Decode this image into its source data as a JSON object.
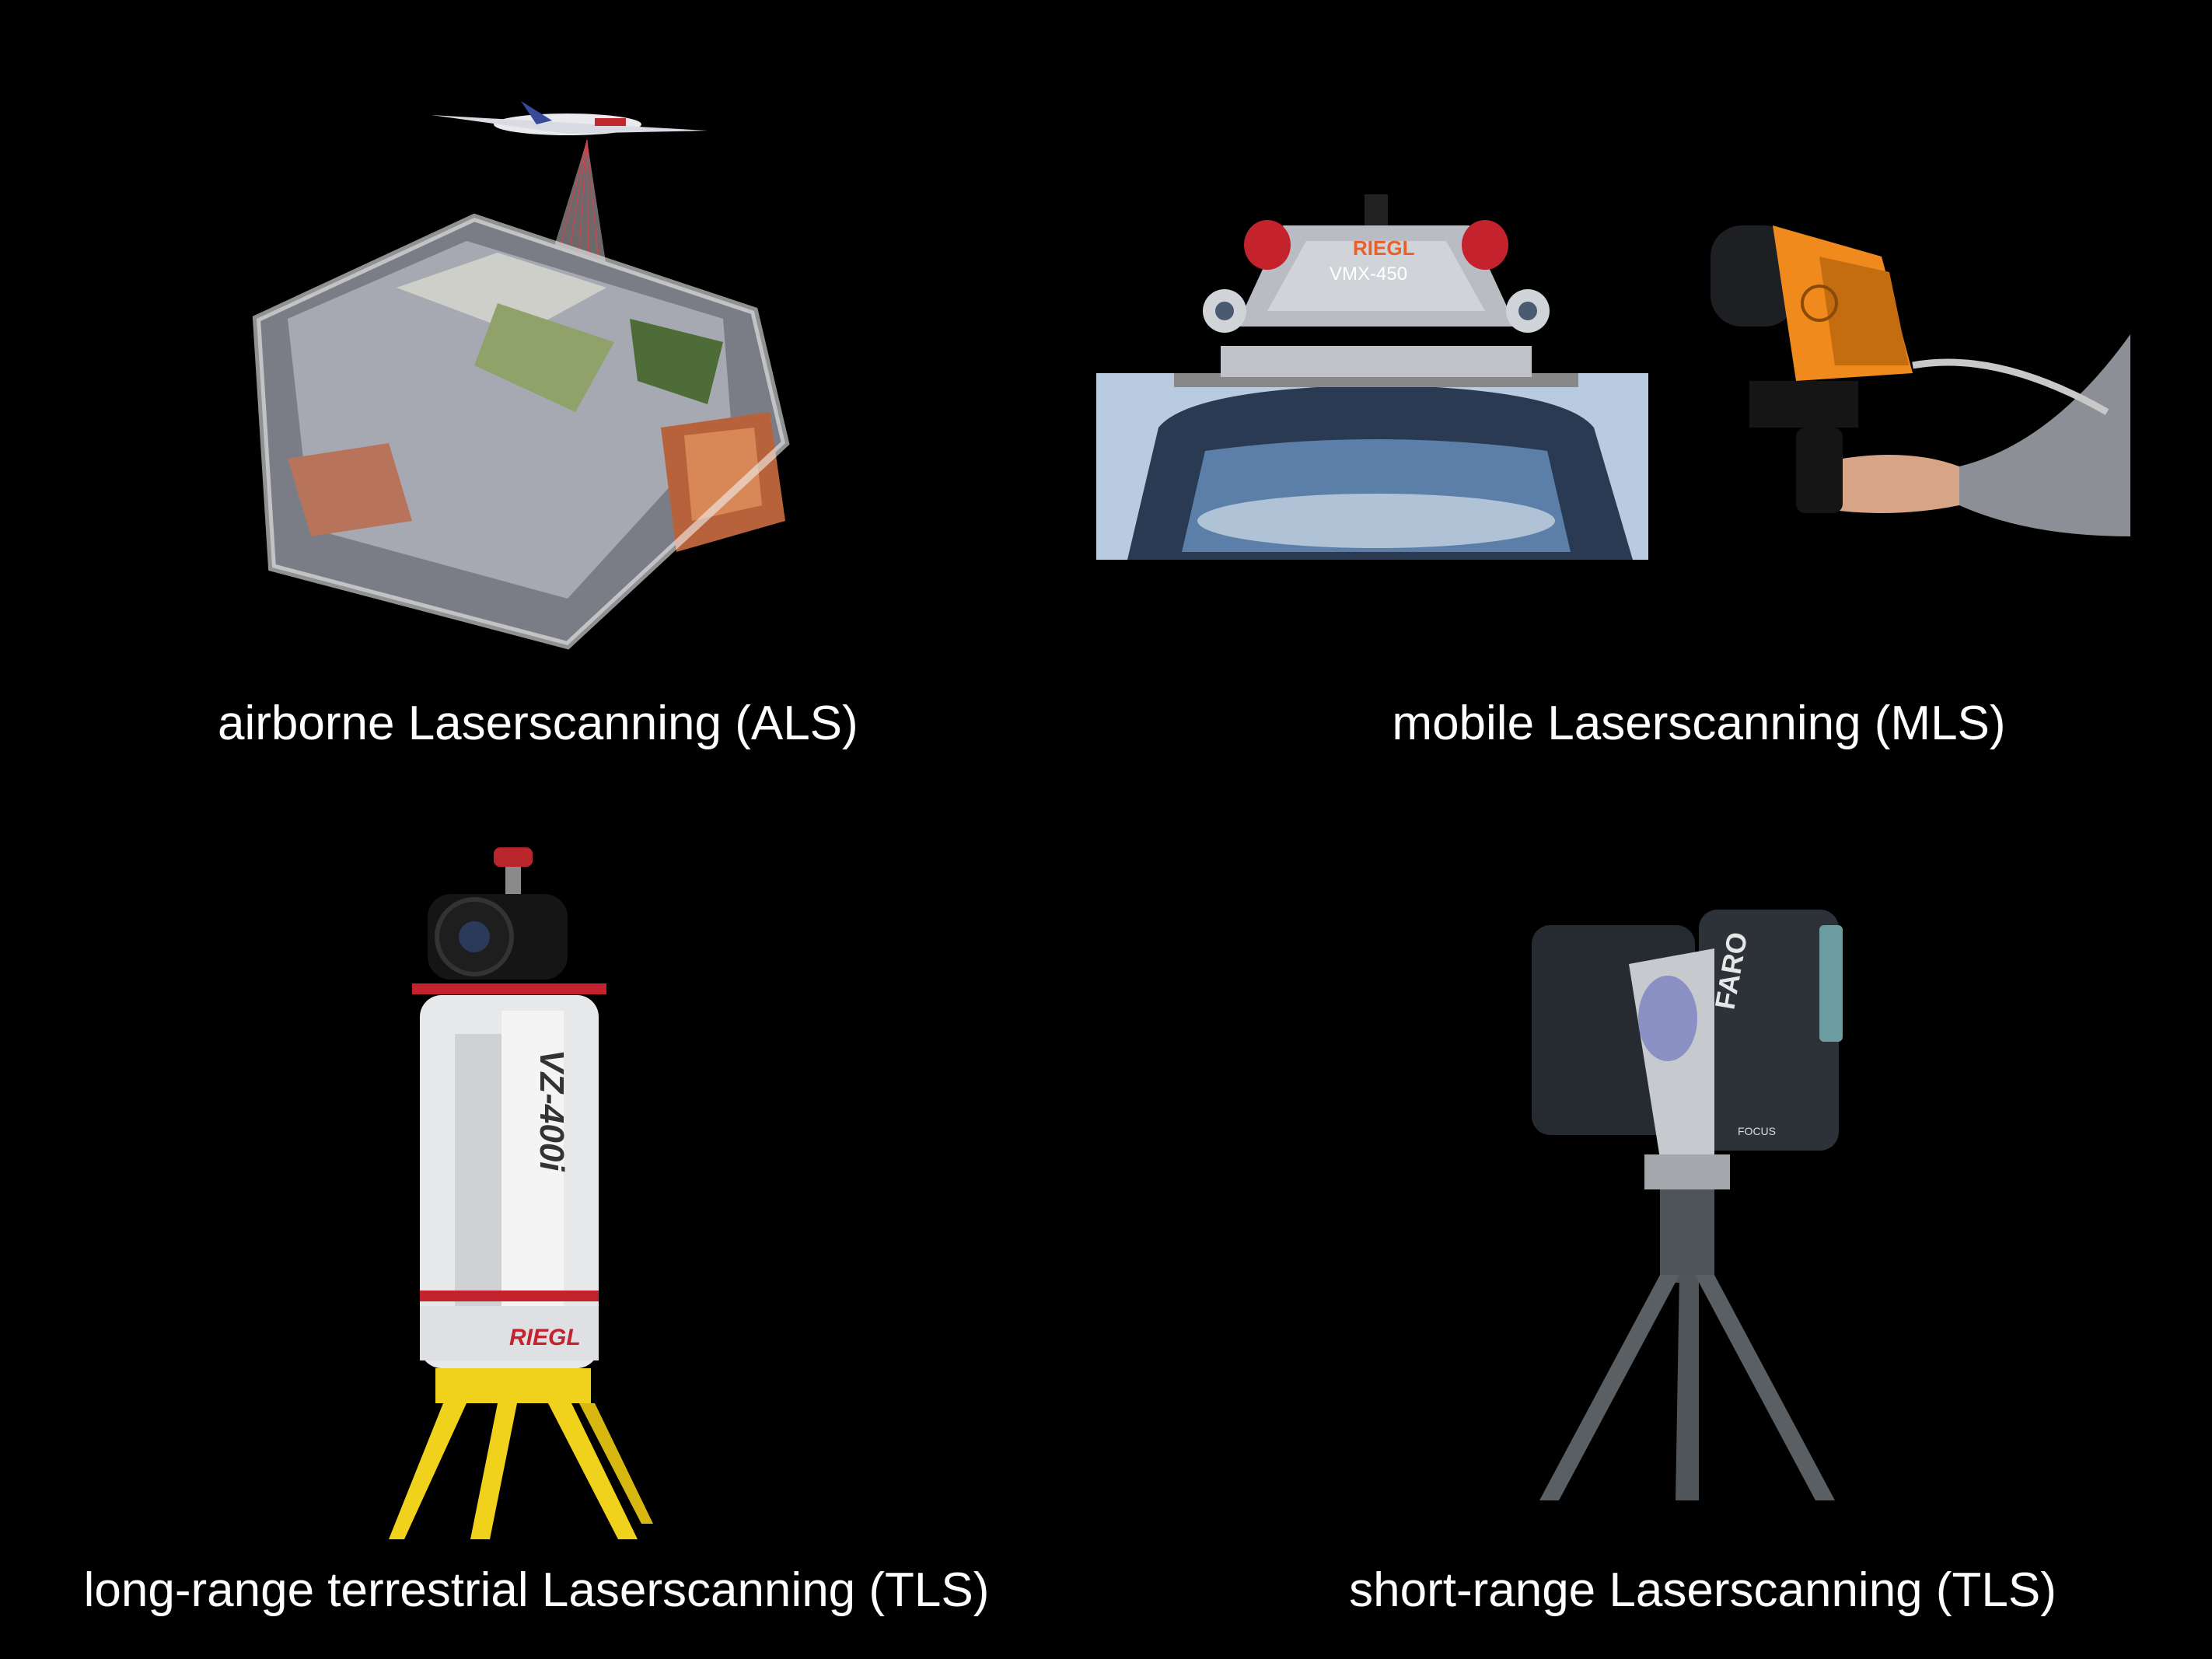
{
  "captions": {
    "als": "airborne Laserscanning (ALS)",
    "mls": "mobile Laserscanning (MLS)",
    "tls_long": "long-range terrestrial Laserscanning (TLS)",
    "tls_short": "short-range Laserscanning (TLS)"
  },
  "labels": {
    "riegl_vmx": "RIEGL",
    "vmx_model": "VMX-450",
    "vz_model": "VZ-400i",
    "riegl_tls": "RIEGL",
    "faro": "FARO",
    "focus": "FOCUS"
  },
  "colors": {
    "background": "#000000",
    "text": "#ffffff",
    "riegl_orange": "#e8612c",
    "tripod_yellow": "#f0d21c",
    "scanner_orange": "#f08a1d"
  }
}
